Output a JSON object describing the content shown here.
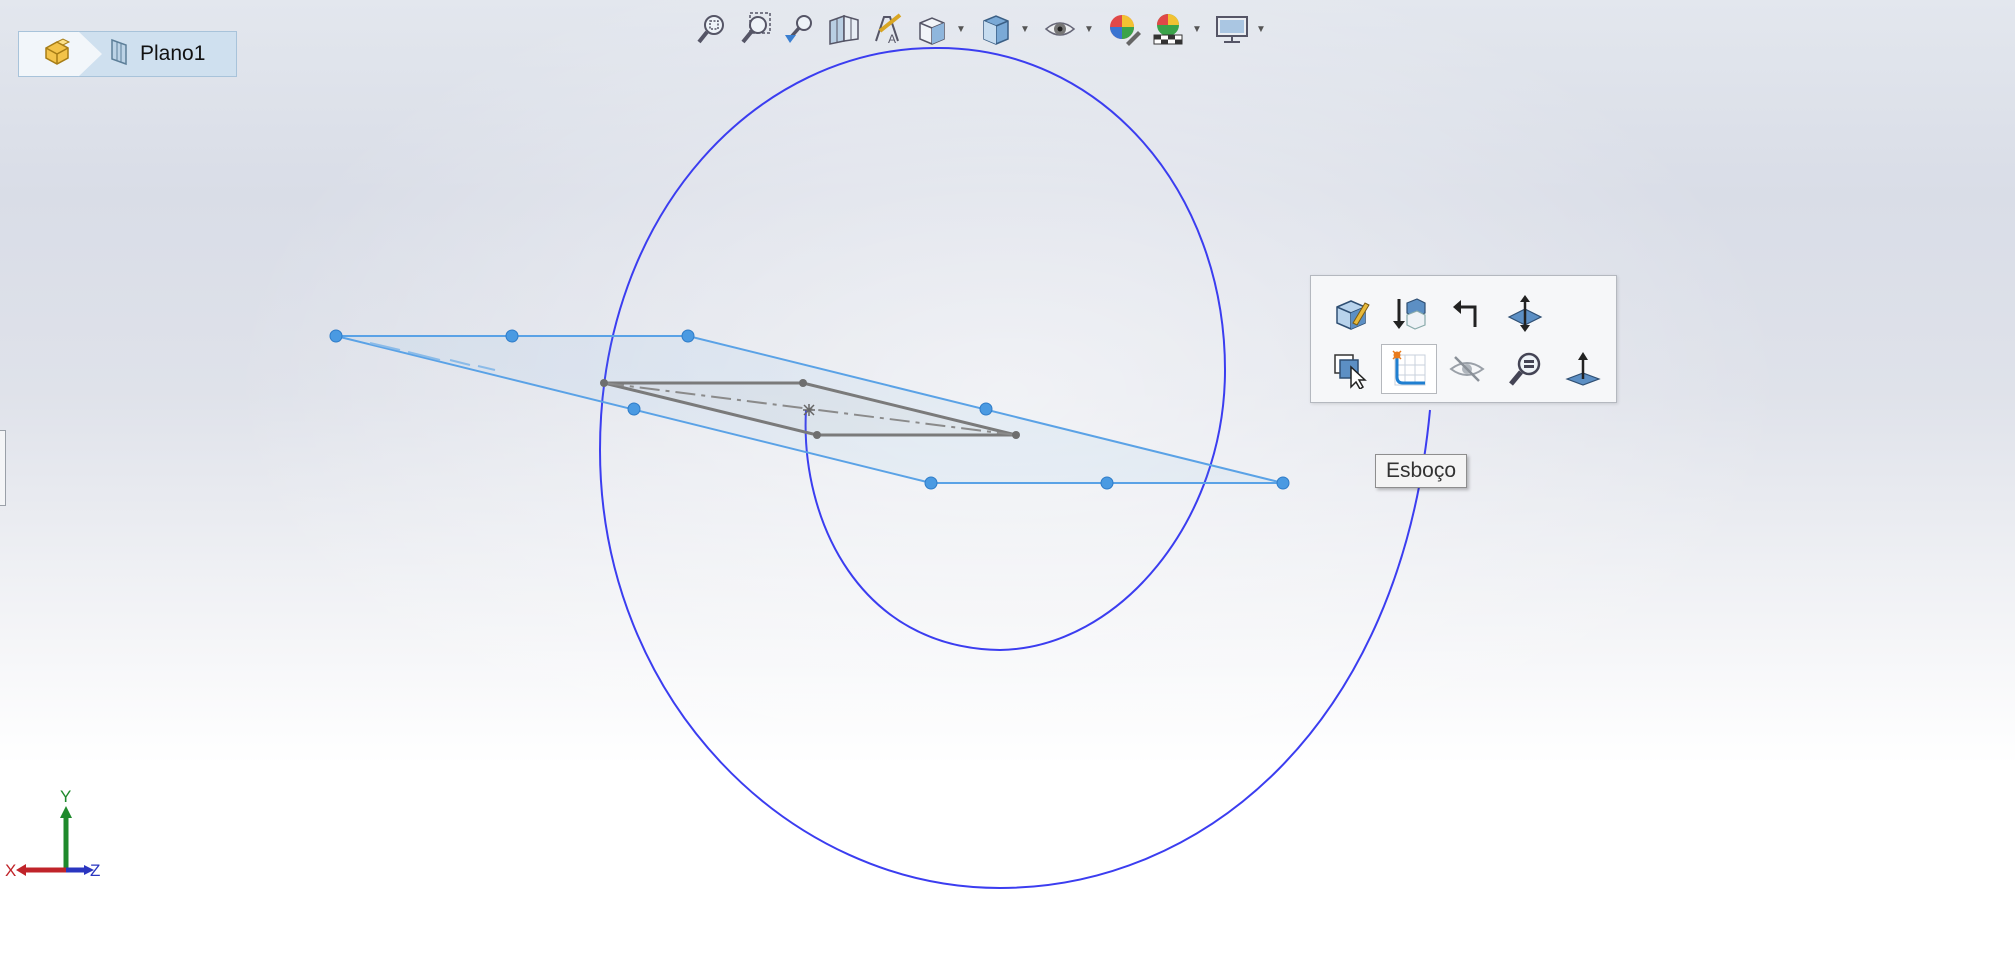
{
  "breadcrumb": {
    "items": [
      {
        "icon": "part-icon",
        "label": ""
      },
      {
        "icon": "plane-icon",
        "label": "Plano1"
      }
    ]
  },
  "heads_up_toolbar": {
    "buttons": [
      {
        "icon": "zoom-to-fit-icon",
        "has_dropdown": false
      },
      {
        "icon": "zoom-to-area-icon",
        "has_dropdown": false
      },
      {
        "icon": "previous-view-icon",
        "has_dropdown": false
      },
      {
        "icon": "section-view-icon",
        "has_dropdown": false
      },
      {
        "icon": "dynamic-annotation-views-icon",
        "has_dropdown": false
      },
      {
        "icon": "view-orientation-icon",
        "has_dropdown": true
      },
      {
        "icon": "display-style-icon",
        "has_dropdown": true
      },
      {
        "icon": "hide-show-items-icon",
        "has_dropdown": true
      },
      {
        "icon": "edit-appearance-icon",
        "has_dropdown": false
      },
      {
        "icon": "apply-scene-icon",
        "has_dropdown": true
      },
      {
        "icon": "view-settings-icon",
        "has_dropdown": true
      }
    ]
  },
  "context_toolbar": {
    "row1": [
      "edit-feature-icon",
      "normal-to-icon",
      "rollback-icon",
      "plane-normal-icon"
    ],
    "row2": [
      "select-other-icon",
      "sketch-icon",
      "hide-icon",
      "zoom-to-selection-icon",
      "normal-arrow-icon"
    ],
    "active": "sketch-icon"
  },
  "tooltip": {
    "text": "Esboço"
  },
  "triad": {
    "x_label": "X",
    "y_label": "Y",
    "z_label": "Z"
  },
  "colors": {
    "curve": "#3b3df0",
    "plane": "#5aa2e6",
    "sketch": "#7a7a7a",
    "axis_x": "#c0242a",
    "axis_y": "#1f8a2c",
    "axis_z": "#2a36c0"
  }
}
